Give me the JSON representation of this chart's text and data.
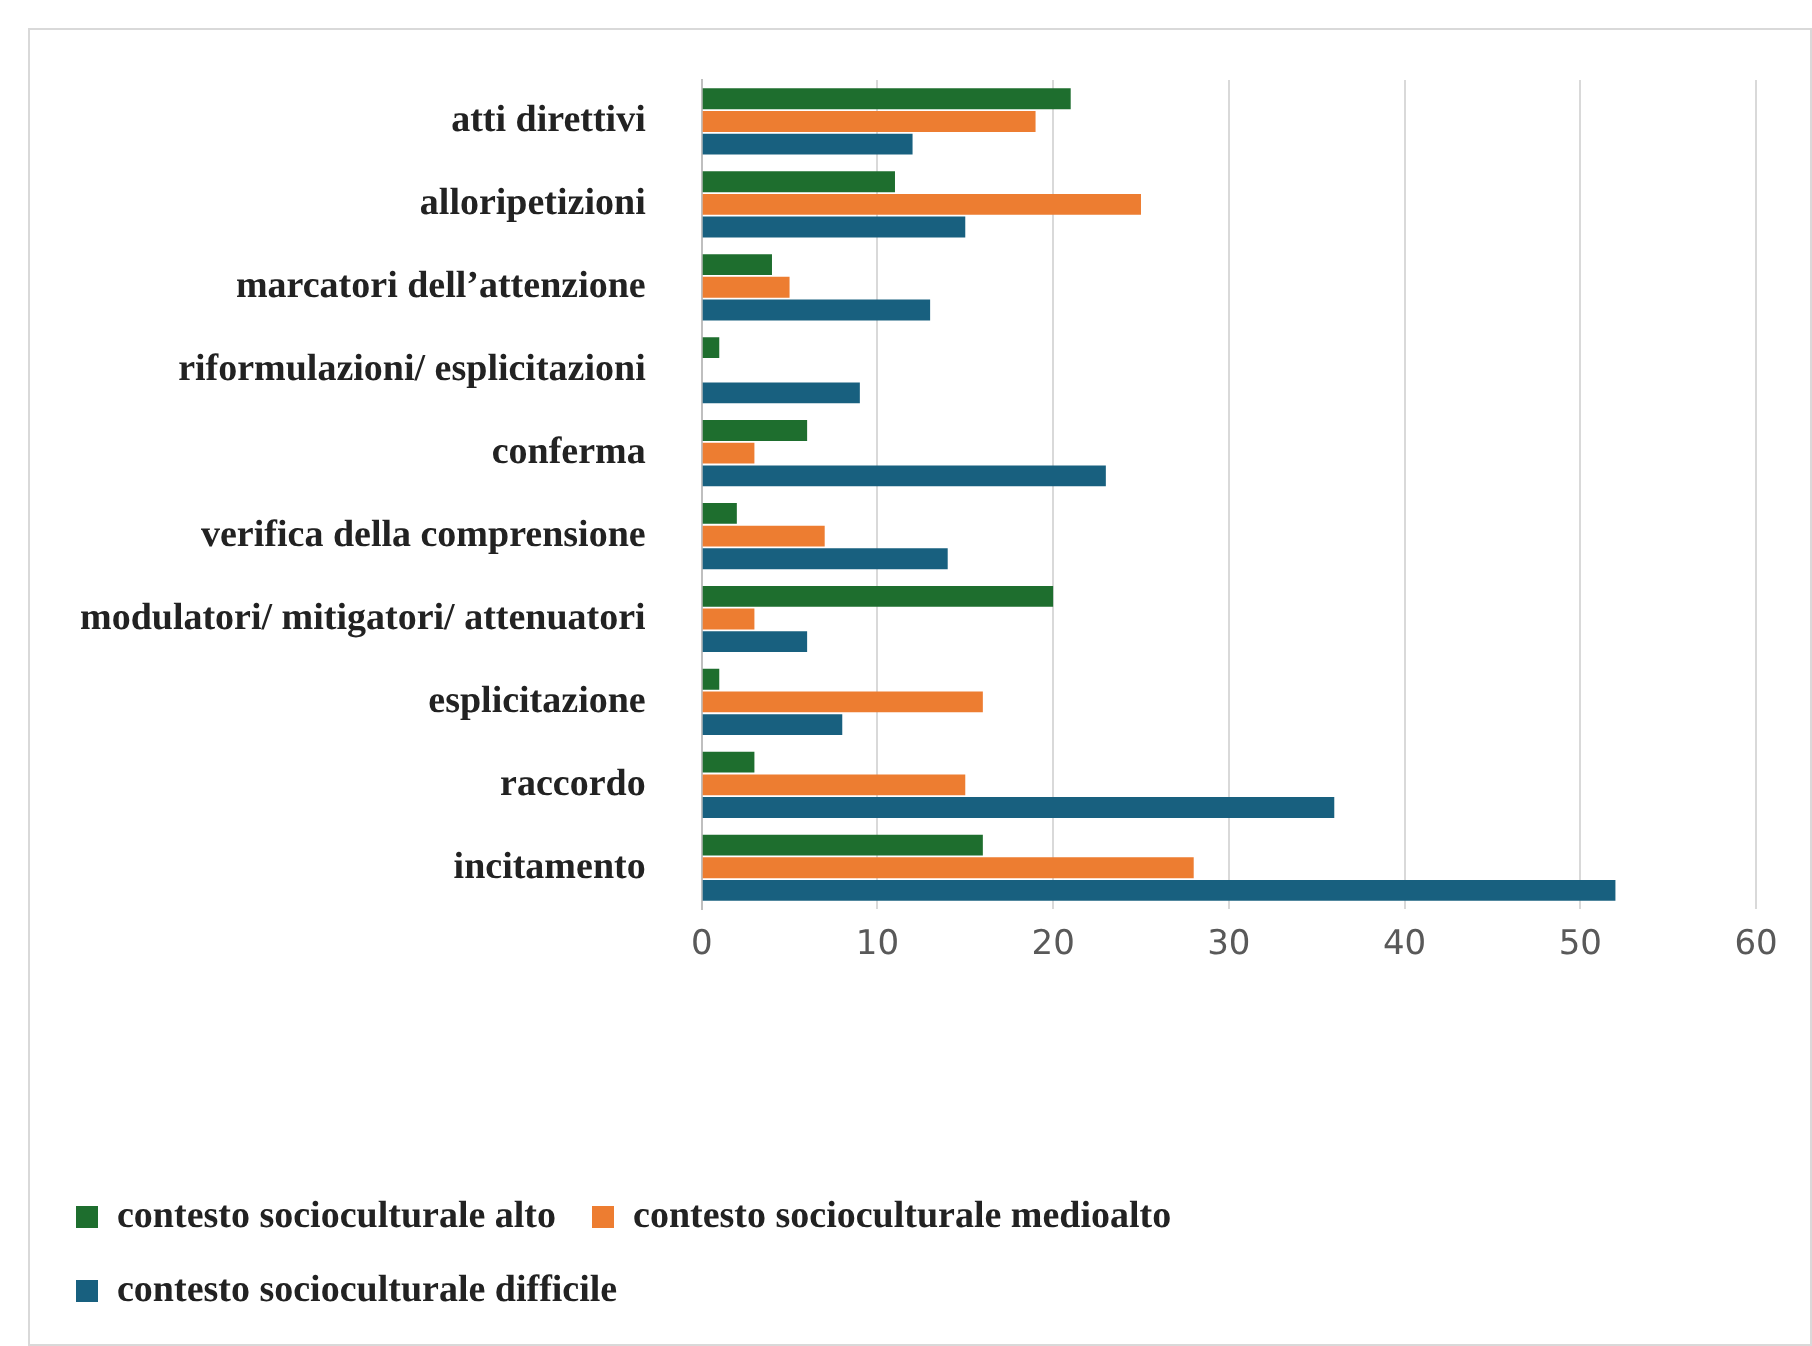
{
  "chart_data": {
    "type": "bar",
    "orientation": "horizontal",
    "categories": [
      "atti direttivi",
      "alloripetizioni",
      "marcatori dell’attenzione",
      "riformulazioni/ esplicitazioni",
      "conferma",
      "verifica della comprensione",
      "modulatori/ mitigatori/ attenuatori",
      "esplicitazione",
      "raccordo",
      "incitamento"
    ],
    "series": [
      {
        "name": "contesto socioculturale alto",
        "color": "#1e6e2e",
        "values": [
          21,
          11,
          4,
          1,
          6,
          2,
          20,
          1,
          3,
          16
        ]
      },
      {
        "name": "contesto socioculturale medioalto",
        "color": "#ed7d31",
        "values": [
          19,
          25,
          5,
          0,
          3,
          7,
          3,
          16,
          15,
          28
        ]
      },
      {
        "name": "contesto socioculturale difficile",
        "color": "#18607f",
        "values": [
          12,
          15,
          13,
          9,
          23,
          14,
          6,
          8,
          36,
          52
        ]
      }
    ],
    "xlim": [
      0,
      60
    ],
    "xticks": [
      0,
      10,
      20,
      30,
      40,
      50,
      60
    ],
    "grid": "x",
    "legend": "bottom"
  }
}
